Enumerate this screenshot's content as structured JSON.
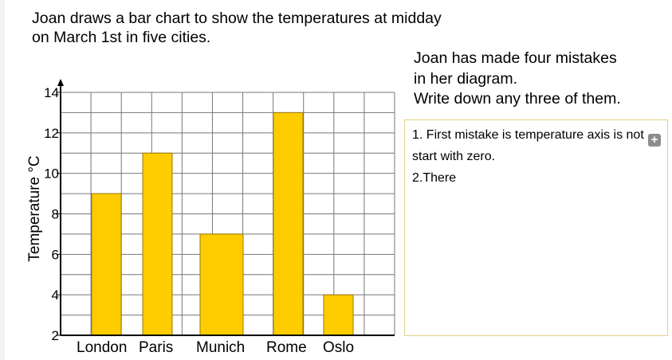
{
  "question": {
    "line1": "Joan draws a bar chart to show the temperatures at midday",
    "line2": "on March 1st in five cities."
  },
  "instructions": {
    "line1": "Joan has made four mistakes",
    "line2": "in her diagram.",
    "line3": "Write down any three of them."
  },
  "answer": {
    "text": "1. First mistake is temperature axis is not start with zero.\n2.There",
    "expand_icon": "plus-icon"
  },
  "chart_data": {
    "type": "bar",
    "categories": [
      "London",
      "Paris",
      "Munich",
      "Rome",
      "Oslo"
    ],
    "values": [
      9,
      11,
      7,
      13,
      4
    ],
    "xlabel": "",
    "ylabel": "Temperature °C",
    "yticks": [
      "2",
      "4",
      "6",
      "8",
      "10",
      "12",
      "14"
    ],
    "ylim": [
      2,
      14
    ],
    "grid": true,
    "bar_color": "#ffcc00",
    "bar_border_color": "#9a7a00"
  }
}
